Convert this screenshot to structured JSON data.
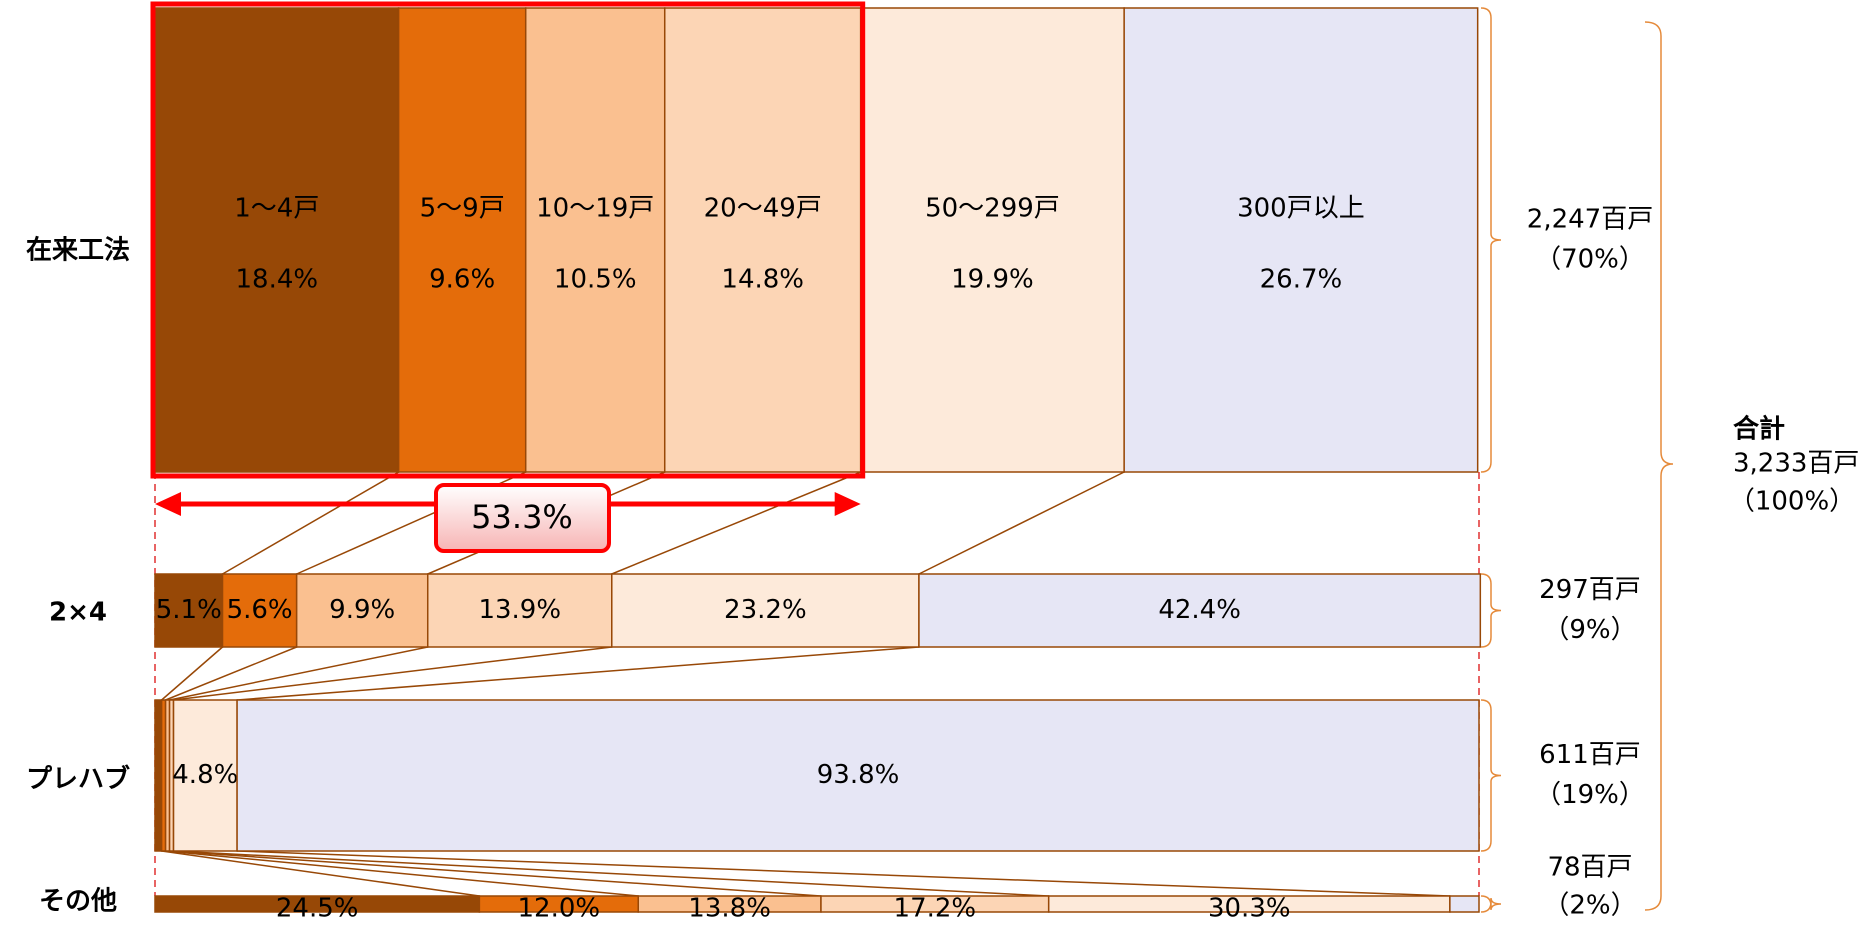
{
  "chart_data": {
    "type": "stacked-bar-horizontal",
    "categories": [
      "在来工法",
      "2×4",
      "プレハブ",
      "その他"
    ],
    "xlim": [
      0,
      100
    ],
    "series": [
      {
        "name": "1～4戸",
        "color": "#974806",
        "values": [
          18.4,
          5.1,
          0.5,
          24.5
        ],
        "value_labels": [
          "18.4%",
          "5.1%",
          null,
          "24.5%"
        ]
      },
      {
        "name": "5～9戸",
        "color": "#e46c0a",
        "values": [
          9.6,
          5.6,
          0.3,
          12.0
        ],
        "value_labels": [
          "9.6%",
          "5.6%",
          null,
          "12.0%"
        ]
      },
      {
        "name": "10～19戸",
        "color": "#fac090",
        "values": [
          10.5,
          9.9,
          0.3,
          13.8
        ],
        "value_labels": [
          "10.5%",
          "9.9%",
          null,
          "13.8%"
        ]
      },
      {
        "name": "20～49戸",
        "color": "#fcd5b5",
        "values": [
          14.8,
          13.9,
          0.3,
          17.2
        ],
        "value_labels": [
          "14.8%",
          "13.9%",
          null,
          "17.2%"
        ]
      },
      {
        "name": "50～299戸",
        "color": "#fdeada",
        "values": [
          19.9,
          23.2,
          4.8,
          30.3
        ],
        "value_labels": [
          "19.9%",
          "23.2%",
          "4.8%",
          "30.3%"
        ]
      },
      {
        "name": "300戸以上",
        "color": "#e6e6f5",
        "values": [
          26.7,
          42.4,
          93.8,
          2.2
        ],
        "value_labels": [
          "26.7%",
          "42.4%",
          "93.8%",
          null
        ]
      }
    ],
    "row_totals": [
      [
        "2,247百戸",
        "（70%）"
      ],
      [
        "297百戸",
        "（9%）"
      ],
      [
        "611百戸",
        "（19%）"
      ],
      [
        "78百戸",
        "（2%）"
      ]
    ],
    "grand_total": [
      "合計",
      "3,233百戸",
      "（100%）"
    ],
    "highlight": {
      "value": 53.3,
      "label": "53.3%"
    }
  }
}
